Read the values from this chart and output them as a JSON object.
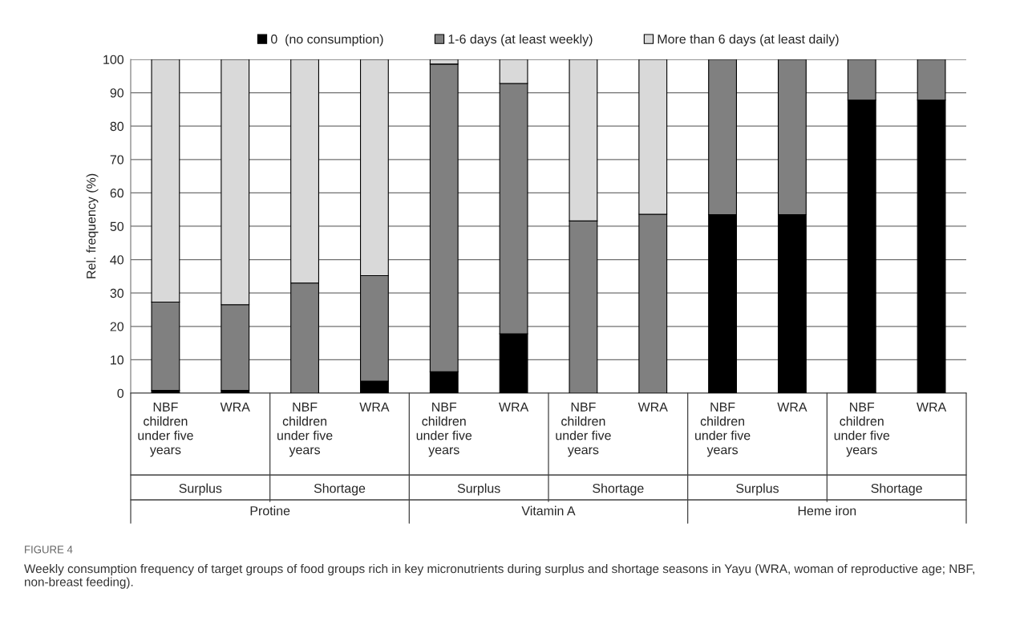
{
  "chart_data": {
    "type": "bar",
    "stacked": true,
    "ylabel": "Rel. frequency (%)",
    "categories": [
      "NBF\nchildren\nunder five\nyears",
      "WRA",
      "NBF\nchildren\nunder five\nyears",
      "WRA",
      "NBF\nchildren\nunder five\nyears",
      "WRA",
      "NBF\nchildren\nunder five\nyears",
      "WRA",
      "NBF\nchildren\nunder five\nyears",
      "WRA",
      "NBF\nchildren\nunder five\nyears",
      "WRA"
    ],
    "series": [
      {
        "name": "0  (no consumption)",
        "color": "#000000",
        "values": [
          0.8,
          0.8,
          0,
          3.6,
          6.4,
          17.8,
          0,
          0,
          53.5,
          53.5,
          87.8,
          87.8
        ]
      },
      {
        "name": "1-6 days (at least weekly)",
        "color": "#808080",
        "values": [
          26.5,
          25.7,
          33,
          31.6,
          92.2,
          75,
          51.6,
          53.6,
          46.5,
          46.5,
          12.2,
          12.2
        ]
      },
      {
        "name": "More than 6 days (at least daily)",
        "color": "#d9d9d9",
        "values": [
          72.7,
          73.5,
          67,
          64.8,
          1.4,
          7.2,
          48.4,
          46.4,
          0,
          0,
          0,
          0
        ]
      }
    ],
    "ylim": [
      0,
      100
    ],
    "yticks": [
      0,
      10,
      20,
      30,
      40,
      50,
      60,
      70,
      80,
      90,
      100
    ],
    "grid": "y",
    "legend": "top",
    "annotations": [
      "Surplus",
      "Shortage",
      "Surplus",
      "Shortage",
      "Surplus",
      "Shortage",
      "Protine",
      "Vitamin A",
      "Heme iron",
      "FIGURE 4",
      "Weekly consumption frequency of target groups of food groups rich in key micronutrients during surplus and shortage seasons in Yayu (WRA, woman of reproductive age; NBF, non-breast feeding)."
    ]
  }
}
